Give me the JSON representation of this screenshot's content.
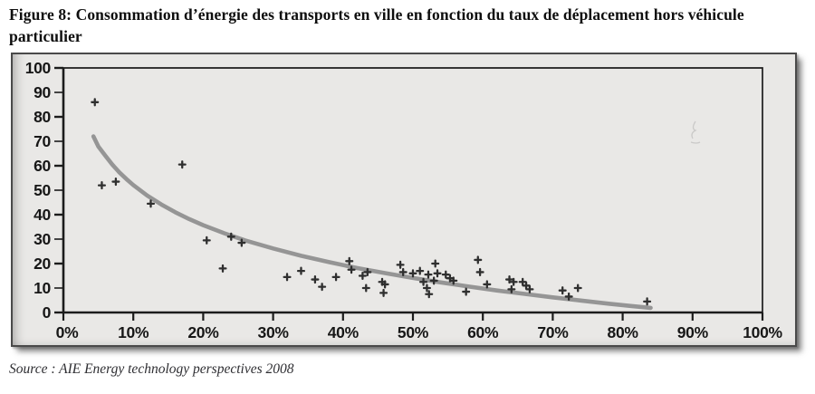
{
  "figure": {
    "title": "Figure 8: Consommation d’énergie des transports en ville en fonction du taux de déplacement hors véhicule particulier",
    "source": "Source : AIE Energy technology perspectives 2008"
  },
  "colors": {
    "panel_background": "#e9e8e6",
    "panel_border": "#4a4a4a",
    "axis": "#1c1c1c",
    "marker": "#2f2f2f",
    "trend_curve": "#8c8c8c"
  },
  "chart_data": {
    "type": "scatter",
    "title": "",
    "xlabel": "",
    "ylabel": "",
    "xlim": [
      0,
      100
    ],
    "ylim": [
      0,
      100
    ],
    "grid": false,
    "legend": false,
    "marker": "plus",
    "x_tick_values": [
      0,
      10,
      20,
      30,
      40,
      50,
      60,
      70,
      80,
      90,
      100
    ],
    "x_tick_labels": [
      "0%",
      "10%",
      "20%",
      "30%",
      "40%",
      "50%",
      "60%",
      "70%",
      "80%",
      "90%",
      "100%"
    ],
    "y_tick_values": [
      0,
      10,
      20,
      30,
      40,
      50,
      60,
      70,
      80,
      90,
      100
    ],
    "y_tick_labels": [
      "0",
      "10",
      "20",
      "30",
      "40",
      "50",
      "60",
      "70",
      "80",
      "90",
      "100"
    ],
    "points": [
      [
        4.5,
        86
      ],
      [
        5.5,
        52
      ],
      [
        7.5,
        53.5
      ],
      [
        12.5,
        44.5
      ],
      [
        17,
        60.5
      ],
      [
        20.5,
        29.5
      ],
      [
        22.8,
        18
      ],
      [
        24,
        31
      ],
      [
        25.5,
        28.5
      ],
      [
        32,
        14.5
      ],
      [
        34,
        17
      ],
      [
        36,
        13.5
      ],
      [
        37,
        10.5
      ],
      [
        39,
        14.5
      ],
      [
        40.9,
        21
      ],
      [
        41.2,
        17.5
      ],
      [
        42.8,
        15
      ],
      [
        43.3,
        10
      ],
      [
        43.5,
        16.5
      ],
      [
        45.6,
        12.5
      ],
      [
        45.8,
        8
      ],
      [
        46,
        11.5
      ],
      [
        48.2,
        19.5
      ],
      [
        48.6,
        16.5
      ],
      [
        50,
        16
      ],
      [
        51,
        17
      ],
      [
        51.5,
        12.5
      ],
      [
        52,
        10
      ],
      [
        52.2,
        15.5
      ],
      [
        52.3,
        7.5
      ],
      [
        53,
        13
      ],
      [
        53.2,
        20
      ],
      [
        53.5,
        16
      ],
      [
        54.7,
        15.5
      ],
      [
        55.3,
        14
      ],
      [
        55.8,
        13
      ],
      [
        57.6,
        8.5
      ],
      [
        59.3,
        21.5
      ],
      [
        59.6,
        16.5
      ],
      [
        60.6,
        11.5
      ],
      [
        63.8,
        13.5
      ],
      [
        64.1,
        9.5
      ],
      [
        64.4,
        12.5
      ],
      [
        65.7,
        12.5
      ],
      [
        66.2,
        11
      ],
      [
        66.7,
        9.5
      ],
      [
        71.4,
        9
      ],
      [
        72.3,
        6.5
      ],
      [
        73.6,
        10
      ],
      [
        83.5,
        4.5
      ]
    ],
    "trend_curve": [
      [
        4.3,
        72
      ],
      [
        5,
        67.9
      ],
      [
        6,
        64.1
      ],
      [
        7,
        60.5
      ],
      [
        8,
        57.3
      ],
      [
        9,
        54.6
      ],
      [
        10,
        52.1
      ],
      [
        12,
        47.8
      ],
      [
        14,
        44.2
      ],
      [
        16,
        41.0
      ],
      [
        18,
        38.2
      ],
      [
        20,
        35.7
      ],
      [
        23,
        32.4
      ],
      [
        26,
        29.5
      ],
      [
        30,
        26.2
      ],
      [
        34,
        23.2
      ],
      [
        38,
        20.6
      ],
      [
        42,
        18.2
      ],
      [
        46,
        16.1
      ],
      [
        50,
        14.1
      ],
      [
        54,
        12.3
      ],
      [
        58,
        10.6
      ],
      [
        62,
        9.0
      ],
      [
        66,
        7.6
      ],
      [
        70,
        6.2
      ],
      [
        74,
        4.9
      ],
      [
        78,
        3.6
      ],
      [
        81,
        2.7
      ],
      [
        84,
        1.9
      ]
    ]
  }
}
